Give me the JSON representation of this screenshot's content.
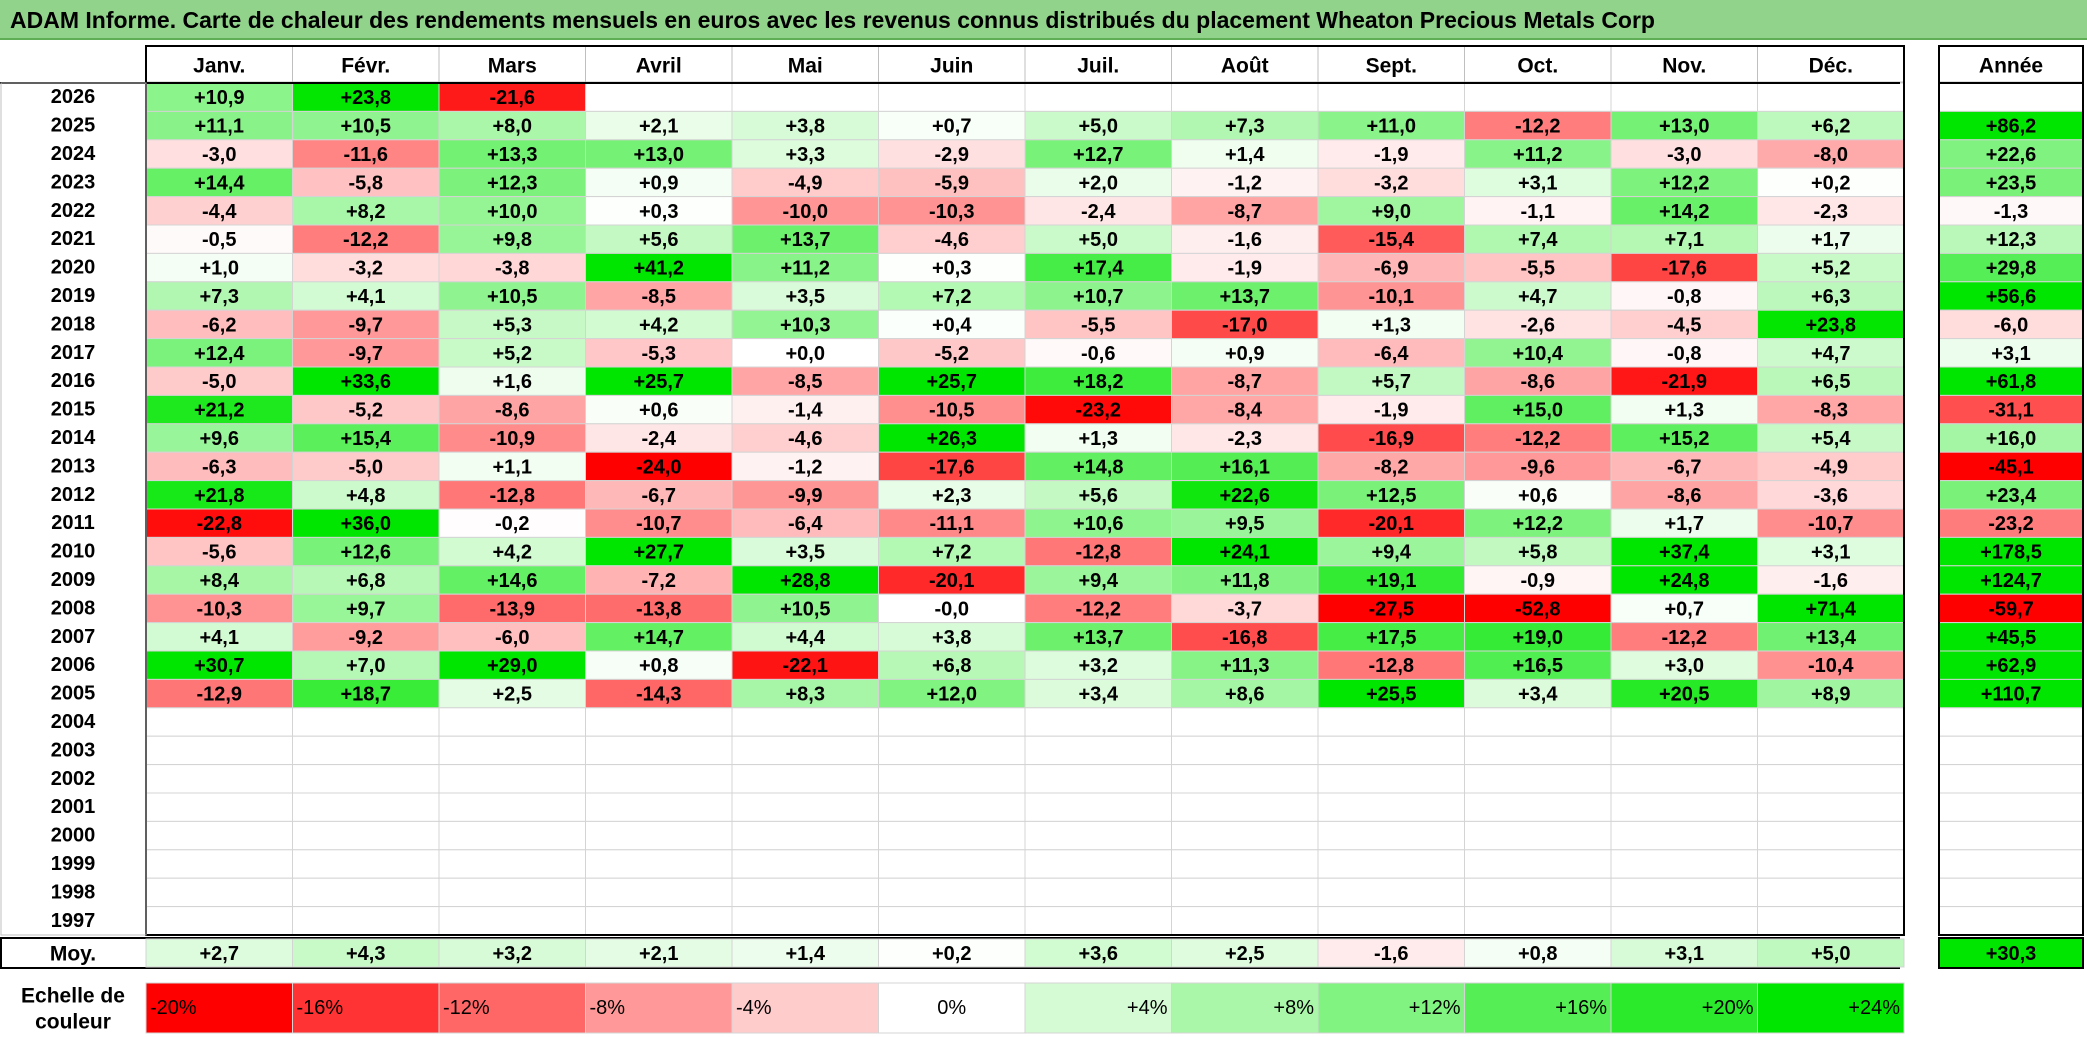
{
  "title": "ADAM Informe. Carte de chaleur des rendements mensuels en euros avec les revenus connus distribués du placement Wheaton Precious Metals Corp",
  "chart_data": {
    "type": "heatmap",
    "months": [
      "Janv.",
      "Févr.",
      "Mars",
      "Avril",
      "Mai",
      "Juin",
      "Juil.",
      "Août",
      "Sept.",
      "Oct.",
      "Nov.",
      "Déc."
    ],
    "year_header": "Année",
    "rows": [
      {
        "year": "2026",
        "values": [
          "+10,9",
          "+23,8",
          "-21,6",
          "",
          "",
          "",
          "",
          "",
          "",
          "",
          "",
          ""
        ],
        "annual": ""
      },
      {
        "year": "2025",
        "values": [
          "+11,1",
          "+10,5",
          "+8,0",
          "+2,1",
          "+3,8",
          "+0,7",
          "+5,0",
          "+7,3",
          "+11,0",
          "-12,2",
          "+13,0",
          "+6,2"
        ],
        "annual": "+86,2"
      },
      {
        "year": "2024",
        "values": [
          "-3,0",
          "-11,6",
          "+13,3",
          "+13,0",
          "+3,3",
          "-2,9",
          "+12,7",
          "+1,4",
          "-1,9",
          "+11,2",
          "-3,0",
          "-8,0"
        ],
        "annual": "+22,6"
      },
      {
        "year": "2023",
        "values": [
          "+14,4",
          "-5,8",
          "+12,3",
          "+0,9",
          "-4,9",
          "-5,9",
          "+2,0",
          "-1,2",
          "-3,2",
          "+3,1",
          "+12,2",
          "+0,2"
        ],
        "annual": "+23,5"
      },
      {
        "year": "2022",
        "values": [
          "-4,4",
          "+8,2",
          "+10,0",
          "+0,3",
          "-10,0",
          "-10,3",
          "-2,4",
          "-8,7",
          "+9,0",
          "-1,1",
          "+14,2",
          "-2,3"
        ],
        "annual": "-1,3"
      },
      {
        "year": "2021",
        "values": [
          "-0,5",
          "-12,2",
          "+9,8",
          "+5,6",
          "+13,7",
          "-4,6",
          "+5,0",
          "-1,6",
          "-15,4",
          "+7,4",
          "+7,1",
          "+1,7"
        ],
        "annual": "+12,3"
      },
      {
        "year": "2020",
        "values": [
          "+1,0",
          "-3,2",
          "-3,8",
          "+41,2",
          "+11,2",
          "+0,3",
          "+17,4",
          "-1,9",
          "-6,9",
          "-5,5",
          "-17,6",
          "+5,2"
        ],
        "annual": "+29,8"
      },
      {
        "year": "2019",
        "values": [
          "+7,3",
          "+4,1",
          "+10,5",
          "-8,5",
          "+3,5",
          "+7,2",
          "+10,7",
          "+13,7",
          "-10,1",
          "+4,7",
          "-0,8",
          "+6,3"
        ],
        "annual": "+56,6"
      },
      {
        "year": "2018",
        "values": [
          "-6,2",
          "-9,7",
          "+5,3",
          "+4,2",
          "+10,3",
          "+0,4",
          "-5,5",
          "-17,0",
          "+1,3",
          "-2,6",
          "-4,5",
          "+23,8"
        ],
        "annual": "-6,0"
      },
      {
        "year": "2017",
        "values": [
          "+12,4",
          "-9,7",
          "+5,2",
          "-5,3",
          "+0,0",
          "-5,2",
          "-0,6",
          "+0,9",
          "-6,4",
          "+10,4",
          "-0,8",
          "+4,7"
        ],
        "annual": "+3,1"
      },
      {
        "year": "2016",
        "values": [
          "-5,0",
          "+33,6",
          "+1,6",
          "+25,7",
          "-8,5",
          "+25,7",
          "+18,2",
          "-8,7",
          "+5,7",
          "-8,6",
          "-21,9",
          "+6,5"
        ],
        "annual": "+61,8"
      },
      {
        "year": "2015",
        "values": [
          "+21,2",
          "-5,2",
          "-8,6",
          "+0,6",
          "-1,4",
          "-10,5",
          "-23,2",
          "-8,4",
          "-1,9",
          "+15,0",
          "+1,3",
          "-8,3"
        ],
        "annual": "-31,1"
      },
      {
        "year": "2014",
        "values": [
          "+9,6",
          "+15,4",
          "-10,9",
          "-2,4",
          "-4,6",
          "+26,3",
          "+1,3",
          "-2,3",
          "-16,9",
          "-12,2",
          "+15,2",
          "+5,4"
        ],
        "annual": "+16,0"
      },
      {
        "year": "2013",
        "values": [
          "-6,3",
          "-5,0",
          "+1,1",
          "-24,0",
          "-1,2",
          "-17,6",
          "+14,8",
          "+16,1",
          "-8,2",
          "-9,6",
          "-6,7",
          "-4,9"
        ],
        "annual": "-45,1"
      },
      {
        "year": "2012",
        "values": [
          "+21,8",
          "+4,8",
          "-12,8",
          "-6,7",
          "-9,9",
          "+2,3",
          "+5,6",
          "+22,6",
          "+12,5",
          "+0,6",
          "-8,6",
          "-3,6"
        ],
        "annual": "+23,4"
      },
      {
        "year": "2011",
        "values": [
          "-22,8",
          "+36,0",
          "-0,2",
          "-10,7",
          "-6,4",
          "-11,1",
          "+10,6",
          "+9,5",
          "-20,1",
          "+12,2",
          "+1,7",
          "-10,7"
        ],
        "annual": "-23,2"
      },
      {
        "year": "2010",
        "values": [
          "-5,6",
          "+12,6",
          "+4,2",
          "+27,7",
          "+3,5",
          "+7,2",
          "-12,8",
          "+24,1",
          "+9,4",
          "+5,8",
          "+37,4",
          "+3,1"
        ],
        "annual": "+178,5"
      },
      {
        "year": "2009",
        "values": [
          "+8,4",
          "+6,8",
          "+14,6",
          "-7,2",
          "+28,8",
          "-20,1",
          "+9,4",
          "+11,8",
          "+19,1",
          "-0,9",
          "+24,8",
          "-1,6"
        ],
        "annual": "+124,7"
      },
      {
        "year": "2008",
        "values": [
          "-10,3",
          "+9,7",
          "-13,9",
          "-13,8",
          "+10,5",
          "-0,0",
          "-12,2",
          "-3,7",
          "-27,5",
          "-52,8",
          "+0,7",
          "+71,4"
        ],
        "annual": "-59,7"
      },
      {
        "year": "2007",
        "values": [
          "+4,1",
          "-9,2",
          "-6,0",
          "+14,7",
          "+4,4",
          "+3,8",
          "+13,7",
          "-16,8",
          "+17,5",
          "+19,0",
          "-12,2",
          "+13,4"
        ],
        "annual": "+45,5"
      },
      {
        "year": "2006",
        "values": [
          "+30,7",
          "+7,0",
          "+29,0",
          "+0,8",
          "-22,1",
          "+6,8",
          "+3,2",
          "+11,3",
          "-12,8",
          "+16,5",
          "+3,0",
          "-10,4"
        ],
        "annual": "+62,9"
      },
      {
        "year": "2005",
        "values": [
          "-12,9",
          "+18,7",
          "+2,5",
          "-14,3",
          "+8,3",
          "+12,0",
          "+3,4",
          "+8,6",
          "+25,5",
          "+3,4",
          "+20,5",
          "+8,9"
        ],
        "annual": "+110,7"
      },
      {
        "year": "2004",
        "values": [
          "",
          "",
          "",
          "",
          "",
          "",
          "",
          "",
          "",
          "",
          "",
          ""
        ],
        "annual": ""
      },
      {
        "year": "2003",
        "values": [
          "",
          "",
          "",
          "",
          "",
          "",
          "",
          "",
          "",
          "",
          "",
          ""
        ],
        "annual": ""
      },
      {
        "year": "2002",
        "values": [
          "",
          "",
          "",
          "",
          "",
          "",
          "",
          "",
          "",
          "",
          "",
          ""
        ],
        "annual": ""
      },
      {
        "year": "2001",
        "values": [
          "",
          "",
          "",
          "",
          "",
          "",
          "",
          "",
          "",
          "",
          "",
          ""
        ],
        "annual": ""
      },
      {
        "year": "2000",
        "values": [
          "",
          "",
          "",
          "",
          "",
          "",
          "",
          "",
          "",
          "",
          "",
          ""
        ],
        "annual": ""
      },
      {
        "year": "1999",
        "values": [
          "",
          "",
          "",
          "",
          "",
          "",
          "",
          "",
          "",
          "",
          "",
          ""
        ],
        "annual": ""
      },
      {
        "year": "1998",
        "values": [
          "",
          "",
          "",
          "",
          "",
          "",
          "",
          "",
          "",
          "",
          "",
          ""
        ],
        "annual": ""
      },
      {
        "year": "1997",
        "values": [
          "",
          "",
          "",
          "",
          "",
          "",
          "",
          "",
          "",
          "",
          "",
          ""
        ],
        "annual": ""
      }
    ],
    "average": {
      "label": "Moy.",
      "values": [
        "+2,7",
        "+4,3",
        "+3,2",
        "+2,1",
        "+1,4",
        "+0,2",
        "+3,6",
        "+2,5",
        "-1,6",
        "+0,8",
        "+3,1",
        "+5,0"
      ],
      "annual": "+30,3"
    },
    "color_scale": {
      "label_line1": "Echelle de",
      "label_line2": "couleur",
      "steps": [
        {
          "label": "-20%",
          "value": -20
        },
        {
          "label": "-16%",
          "value": -16
        },
        {
          "label": "-12%",
          "value": -12
        },
        {
          "label": "-8%",
          "value": -8
        },
        {
          "label": "-4%",
          "value": -4
        },
        {
          "label": "0%",
          "value": 0
        },
        {
          "label": "+4%",
          "value": 4
        },
        {
          "label": "+8%",
          "value": 8
        },
        {
          "label": "+12%",
          "value": 12
        },
        {
          "label": "+16%",
          "value": 16
        },
        {
          "label": "+20%",
          "value": 20
        },
        {
          "label": "+24%",
          "value": 24
        }
      ]
    },
    "colors": {
      "negative_max": "#ff0000",
      "neutral": "#ffffff",
      "positive_max": "#00e600"
    }
  }
}
